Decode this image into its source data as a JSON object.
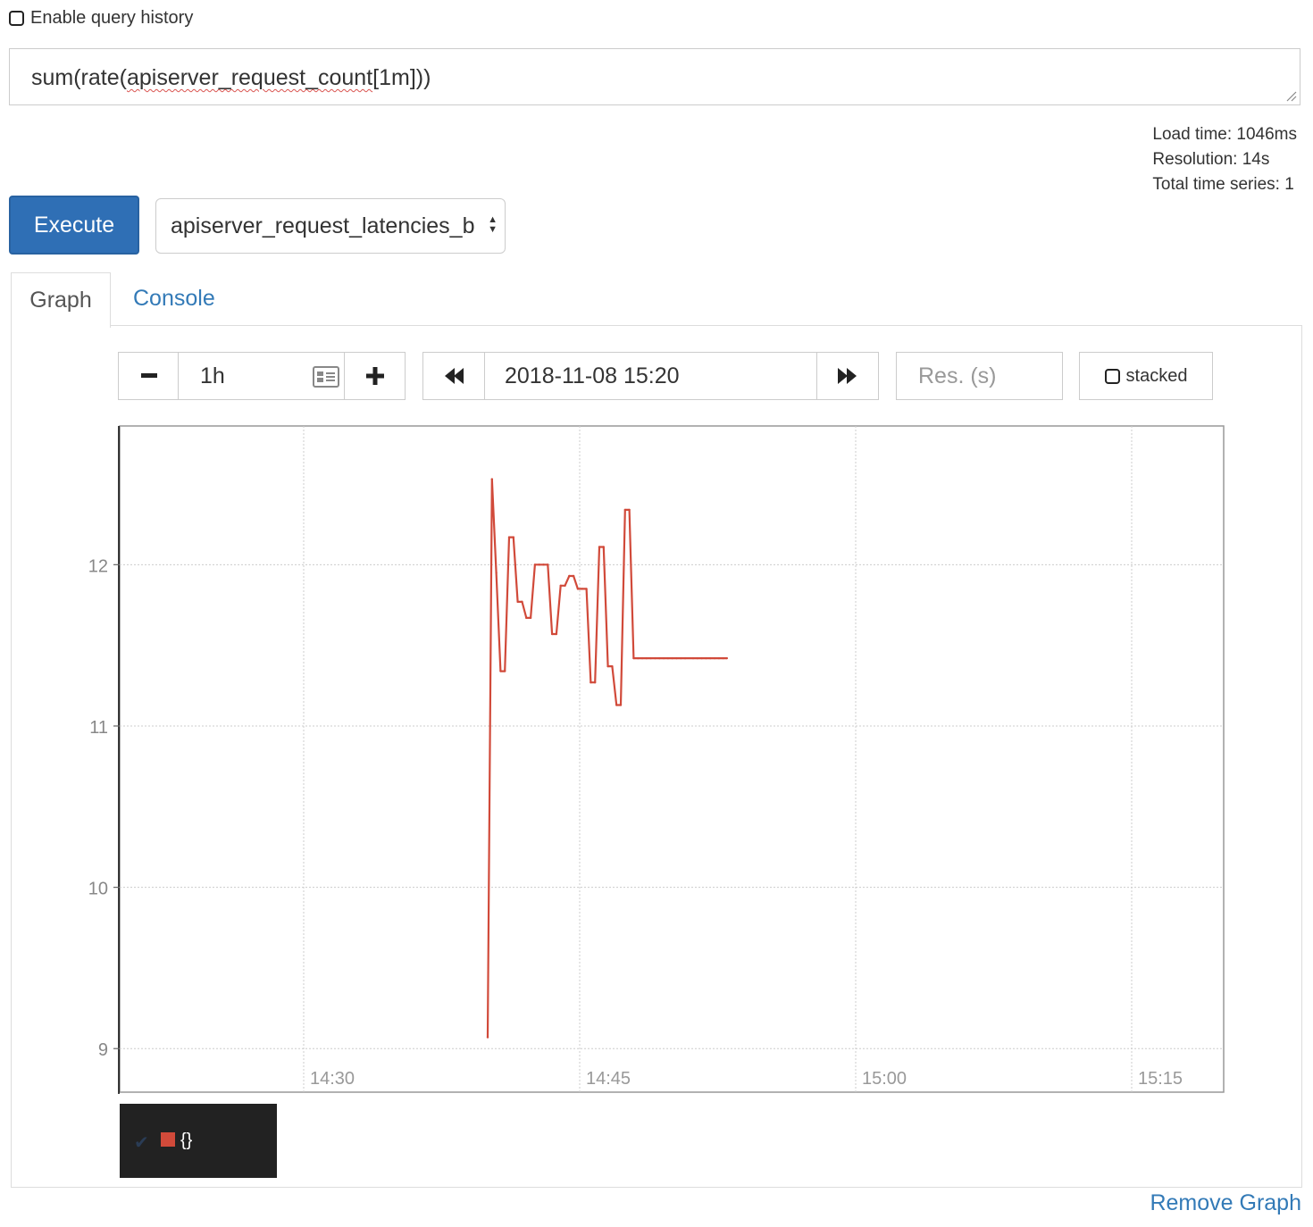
{
  "history": {
    "label": "Enable query history",
    "checked": false
  },
  "query": {
    "prefix": "sum(rate(",
    "metric": "apiserver_request_count",
    "suffix": "[1m]))"
  },
  "stats": {
    "load_time": "Load time: 1046ms",
    "resolution": "Resolution: 14s",
    "total_series": "Total time series: 1"
  },
  "execute_label": "Execute",
  "metric_select_value": "apiserver_request_latencies_b",
  "tabs": {
    "graph": "Graph",
    "console": "Console"
  },
  "controls": {
    "range_minus": "−",
    "range_value": "1h",
    "range_plus": "+",
    "end_time": "2018-11-08 15:20",
    "resolution_placeholder": "Res. (s)",
    "stacked_label": "stacked",
    "stacked_checked": false
  },
  "chart_data": {
    "type": "line",
    "x_ticks": [
      "14:30",
      "14:45",
      "15:00",
      "15:15"
    ],
    "y_ticks": [
      9,
      10,
      11,
      12
    ],
    "xlim": [
      "14:20",
      "15:20"
    ],
    "ylim": [
      8.73,
      12.86
    ],
    "grid": true,
    "series": [
      {
        "name": "{}",
        "color": "#d14a3a",
        "x": [
          "14:40:00",
          "14:40:14",
          "14:40:28",
          "14:40:42",
          "14:40:56",
          "14:41:10",
          "14:41:24",
          "14:41:38",
          "14:41:52",
          "14:42:06",
          "14:42:20",
          "14:42:34",
          "14:42:48",
          "14:43:02",
          "14:43:16",
          "14:43:30",
          "14:43:44",
          "14:43:58",
          "14:44:12",
          "14:44:26",
          "14:44:40",
          "14:44:54",
          "14:45:08",
          "14:45:22",
          "14:45:36",
          "14:45:50",
          "14:46:04",
          "14:46:18",
          "14:46:32",
          "14:46:46",
          "14:47:00",
          "14:47:14",
          "14:47:28",
          "14:47:42",
          "14:47:56",
          "14:48:10",
          "14:48:24",
          "14:48:38",
          "14:48:52",
          "14:49:06",
          "14:49:20",
          "14:49:34",
          "14:49:48",
          "14:50:02",
          "14:50:16",
          "14:50:30",
          "14:50:44",
          "14:51:10",
          "14:51:24",
          "14:51:38",
          "14:51:52",
          "14:52:06",
          "14:52:20",
          "14:52:34",
          "14:52:48",
          "14:53:00"
        ],
        "y": [
          9.07,
          12.53,
          11.95,
          11.34,
          11.34,
          12.17,
          12.17,
          11.77,
          11.77,
          11.67,
          11.67,
          12.0,
          12.0,
          12.0,
          12.0,
          11.57,
          11.57,
          11.87,
          11.87,
          11.93,
          11.93,
          11.85,
          11.85,
          11.85,
          11.27,
          11.27,
          12.11,
          12.11,
          11.37,
          11.37,
          11.13,
          11.13,
          12.34,
          12.34,
          11.42,
          11.42,
          11.42,
          11.42,
          11.42,
          11.42,
          11.42,
          11.42,
          11.42,
          11.42,
          11.42,
          11.42,
          11.42,
          11.42,
          11.42,
          11.42,
          11.42,
          11.42,
          11.42,
          11.42,
          11.42,
          11.42
        ]
      }
    ]
  },
  "legend": {
    "series_label": "{}",
    "series_color": "#d14a3a"
  },
  "remove_graph": "Remove Graph"
}
